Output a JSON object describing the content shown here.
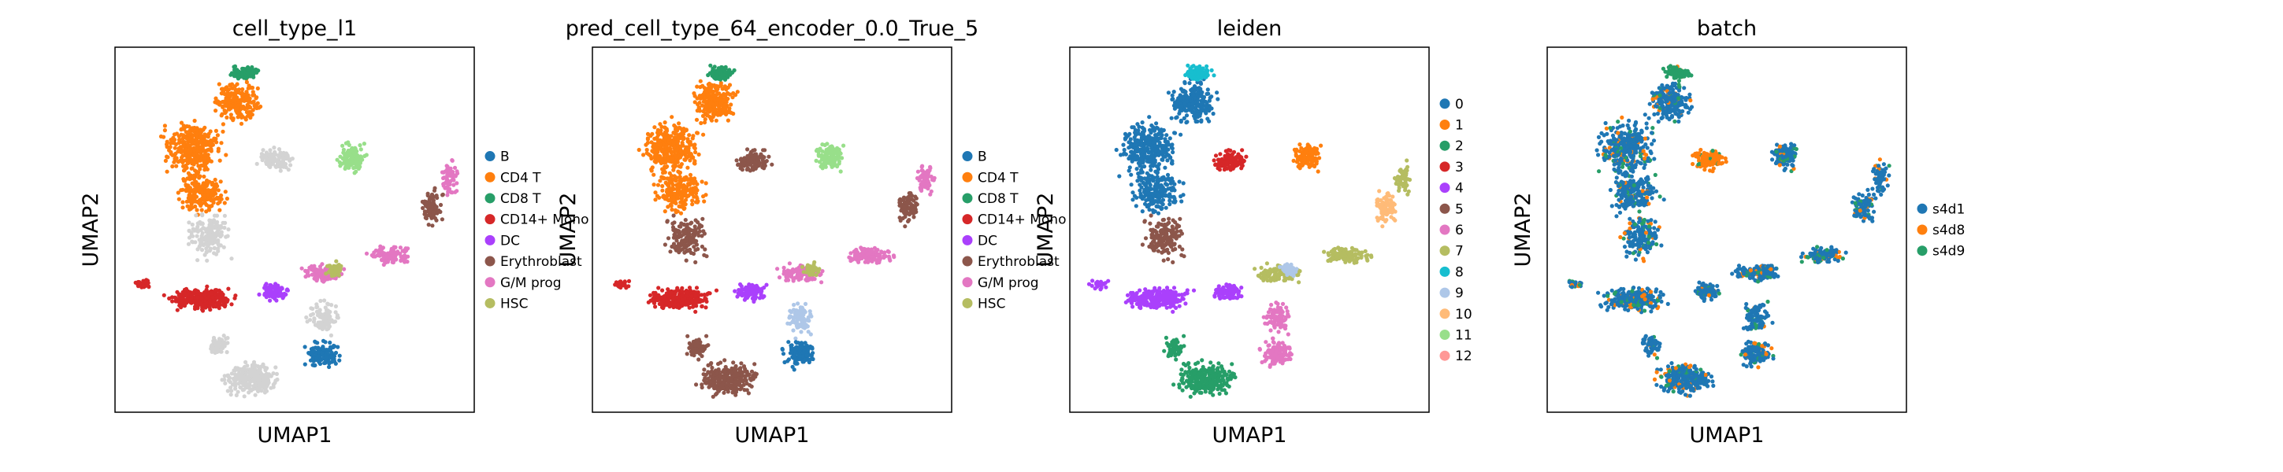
{
  "chart_data": [
    {
      "type": "scatter",
      "title": "cell_type_l1",
      "xlabel": "UMAP1",
      "ylabel": "UMAP2",
      "legend_placement": "right",
      "unassigned_color": "#d3d3d3",
      "legend": [
        {
          "label": "B",
          "color": "#1f77b4"
        },
        {
          "label": "CD4 T",
          "color": "#ff7f0e"
        },
        {
          "label": "CD8 T",
          "color": "#279e68"
        },
        {
          "label": "CD14+ Mono",
          "color": "#d62728"
        },
        {
          "label": "DC",
          "color": "#aa40fc"
        },
        {
          "label": "Erythroblast",
          "color": "#8c564b"
        },
        {
          "label": "G/M prog",
          "color": "#e377c2"
        },
        {
          "label": "HSC",
          "color": "#b5bd61"
        }
      ]
    },
    {
      "type": "scatter",
      "title": "pred_cell_type_64_encoder_0.0_True_5",
      "xlabel": "UMAP1",
      "ylabel": "UMAP2",
      "legend_placement": "right",
      "legend": [
        {
          "label": "B",
          "color": "#1f77b4"
        },
        {
          "label": "CD4 T",
          "color": "#ff7f0e"
        },
        {
          "label": "CD8 T",
          "color": "#279e68"
        },
        {
          "label": "CD14+ Mono",
          "color": "#d62728"
        },
        {
          "label": "DC",
          "color": "#aa40fc"
        },
        {
          "label": "Erythroblast",
          "color": "#8c564b"
        },
        {
          "label": "G/M prog",
          "color": "#e377c2"
        },
        {
          "label": "HSC",
          "color": "#b5bd61"
        }
      ]
    },
    {
      "type": "scatter",
      "title": "leiden",
      "xlabel": "UMAP1",
      "ylabel": "UMAP2",
      "legend_placement": "right",
      "legend": [
        {
          "label": "0",
          "color": "#1f77b4"
        },
        {
          "label": "1",
          "color": "#ff7f0e"
        },
        {
          "label": "2",
          "color": "#279e68"
        },
        {
          "label": "3",
          "color": "#d62728"
        },
        {
          "label": "4",
          "color": "#aa40fc"
        },
        {
          "label": "5",
          "color": "#8c564b"
        },
        {
          "label": "6",
          "color": "#e377c2"
        },
        {
          "label": "7",
          "color": "#b5bd61"
        },
        {
          "label": "8",
          "color": "#17becf"
        },
        {
          "label": "9",
          "color": "#aec7e8"
        },
        {
          "label": "10",
          "color": "#ffbb78"
        },
        {
          "label": "11",
          "color": "#98df8a"
        },
        {
          "label": "12",
          "color": "#ff9896"
        }
      ]
    },
    {
      "type": "scatter",
      "title": "batch",
      "xlabel": "UMAP1",
      "ylabel": "UMAP2",
      "legend_placement": "right",
      "legend": [
        {
          "label": "s4d1",
          "color": "#1f77b4"
        },
        {
          "label": "s4d8",
          "color": "#ff7f0e"
        },
        {
          "label": "s4d9",
          "color": "#279e68"
        }
      ]
    }
  ]
}
